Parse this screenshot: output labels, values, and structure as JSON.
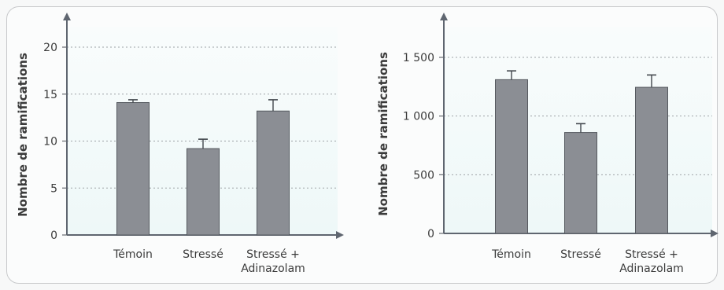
{
  "chart_data": [
    {
      "type": "bar",
      "categories": [
        [
          "Témoin"
        ],
        [
          "Stressé"
        ],
        [
          "Stressé +",
          "Adinazolam"
        ]
      ],
      "values": [
        14.1,
        9.2,
        13.2
      ],
      "error_bars": [
        0.3,
        1.0,
        1.2
      ],
      "ylabel": "Nombre de ramifications",
      "xlabel": "",
      "ylim": [
        0,
        20
      ],
      "yticks": [
        0,
        5,
        10,
        15,
        20
      ],
      "ytick_labels": [
        "0",
        "5",
        "10",
        "15",
        "20"
      ],
      "grid": true,
      "bar_color": "#8b8e94",
      "background_gradient": [
        "#eef8f8",
        "#f9fcfc"
      ]
    },
    {
      "type": "bar",
      "categories": [
        [
          "Témoin"
        ],
        [
          "Stressé"
        ],
        [
          "Stressé +",
          "Adinazolam"
        ]
      ],
      "values": [
        1310,
        860,
        1245
      ],
      "error_bars": [
        75,
        75,
        105
      ],
      "ylabel": "Nombre de ramifications",
      "xlabel": "",
      "ylim": [
        0,
        1500
      ],
      "yticks": [
        0,
        500,
        1000,
        1500
      ],
      "ytick_labels": [
        "0",
        "500",
        "1 000",
        "1 500"
      ],
      "grid": true,
      "bar_color": "#8b8e94",
      "background_gradient": [
        "#eef8f8",
        "#f9fcfc"
      ]
    }
  ]
}
